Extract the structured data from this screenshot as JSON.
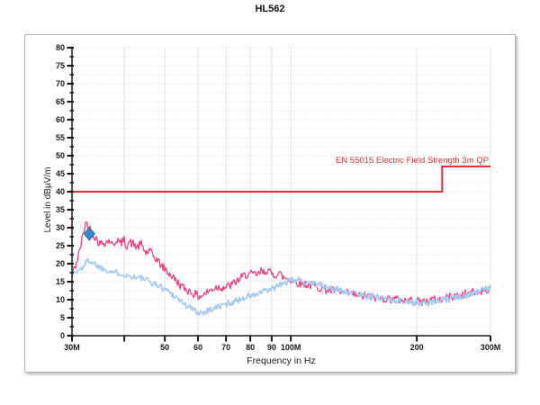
{
  "title": "HL562",
  "chart_data": {
    "type": "line",
    "title": "HL562",
    "xlabel": "Frequency in Hz",
    "ylabel": "Level in dBµV/m",
    "x_scale": "log",
    "x_range_mhz": [
      30,
      300
    ],
    "ylim": [
      0,
      80
    ],
    "y_major_step": 5,
    "y_minor_step": 2.5,
    "grid": "on",
    "x_ticks": [
      {
        "mhz": 30,
        "label": "30M"
      },
      {
        "mhz": 40,
        "label": ""
      },
      {
        "mhz": 50,
        "label": "50"
      },
      {
        "mhz": 60,
        "label": "60"
      },
      {
        "mhz": 70,
        "label": "70"
      },
      {
        "mhz": 80,
        "label": "80"
      },
      {
        "mhz": 90,
        "label": "90"
      },
      {
        "mhz": 100,
        "label": "100M"
      },
      {
        "mhz": 200,
        "label": "200"
      },
      {
        "mhz": 300,
        "label": "300M"
      }
    ],
    "limit_line": {
      "label": "EN 55015 Electric Field Strength 3m QP",
      "color": "#e03030",
      "segments": [
        {
          "from_mhz": 30,
          "to_mhz": 230,
          "level_db": 40
        },
        {
          "from_mhz": 230,
          "to_mhz": 300,
          "level_db": 47
        }
      ]
    },
    "marker": {
      "shape": "diamond",
      "color": "#3c87c9",
      "edge": "#2f6ea6",
      "freq_mhz": 33,
      "level_db": 28.3
    },
    "series": [
      {
        "name": "pink-trace",
        "color": "#ec4381",
        "width": 1.3,
        "noise_db": 1.2,
        "seed": 42,
        "points": [
          [
            30,
            17.5
          ],
          [
            30.4,
            18.5
          ],
          [
            30.8,
            20.5
          ],
          [
            31.2,
            23
          ],
          [
            31.6,
            26
          ],
          [
            32,
            29
          ],
          [
            32.3,
            31.5
          ],
          [
            32.8,
            30.5
          ],
          [
            33.2,
            29.5
          ],
          [
            33.6,
            28.5
          ],
          [
            34,
            27.5
          ],
          [
            34.5,
            26.5
          ],
          [
            35,
            25.5
          ],
          [
            36,
            26
          ],
          [
            37,
            26.5
          ],
          [
            37.5,
            25
          ],
          [
            38,
            26
          ],
          [
            38.5,
            27
          ],
          [
            39,
            25.5
          ],
          [
            40,
            26.5
          ],
          [
            40.5,
            25
          ],
          [
            41,
            26
          ],
          [
            42,
            25.5
          ],
          [
            43,
            24.5
          ],
          [
            44,
            25.5
          ],
          [
            44.5,
            24
          ],
          [
            45,
            23
          ],
          [
            46,
            23.5
          ],
          [
            47,
            22
          ],
          [
            48,
            21
          ],
          [
            49,
            19.5
          ],
          [
            50,
            18.5
          ],
          [
            51,
            17.5
          ],
          [
            52,
            16.5
          ],
          [
            53,
            15.5
          ],
          [
            54,
            14.5
          ],
          [
            55,
            13.5
          ],
          [
            56,
            13
          ],
          [
            57,
            12.5
          ],
          [
            58,
            12
          ],
          [
            59,
            11.5
          ],
          [
            60,
            11
          ],
          [
            61,
            11
          ],
          [
            62,
            11.5
          ],
          [
            63,
            12
          ],
          [
            64,
            12.5
          ],
          [
            65,
            13
          ],
          [
            66,
            13.5
          ],
          [
            68,
            13.5
          ],
          [
            70,
            13.5
          ],
          [
            72,
            14
          ],
          [
            74,
            15
          ],
          [
            75,
            15.5
          ],
          [
            76,
            16
          ],
          [
            78,
            17
          ],
          [
            80,
            17
          ],
          [
            82,
            17
          ],
          [
            84,
            17
          ],
          [
            85,
            18
          ],
          [
            86,
            17.5
          ],
          [
            88,
            18.5
          ],
          [
            89,
            17.5
          ],
          [
            90,
            17
          ],
          [
            92,
            17
          ],
          [
            94,
            17.5
          ],
          [
            95,
            16.5
          ],
          [
            97,
            16
          ],
          [
            100,
            15.5
          ],
          [
            103,
            15
          ],
          [
            105,
            14.5
          ],
          [
            108,
            14.5
          ],
          [
            110,
            14
          ],
          [
            113,
            14
          ],
          [
            116,
            13.5
          ],
          [
            120,
            13
          ],
          [
            124,
            12.5
          ],
          [
            128,
            12.5
          ],
          [
            132,
            12
          ],
          [
            136,
            11.8
          ],
          [
            140,
            11.5
          ],
          [
            145,
            11.2
          ],
          [
            150,
            11
          ],
          [
            155,
            10.8
          ],
          [
            160,
            10.5
          ],
          [
            165,
            10.5
          ],
          [
            170,
            10.2
          ],
          [
            175,
            10.2
          ],
          [
            180,
            10
          ],
          [
            185,
            10
          ],
          [
            190,
            9.8
          ],
          [
            195,
            9.8
          ],
          [
            200,
            9.5
          ],
          [
            205,
            9.5
          ],
          [
            210,
            9.5
          ],
          [
            215,
            9.8
          ],
          [
            220,
            10
          ],
          [
            225,
            10
          ],
          [
            230,
            10.2
          ],
          [
            235,
            10.5
          ],
          [
            240,
            10.8
          ],
          [
            245,
            11
          ],
          [
            250,
            11
          ],
          [
            255,
            11.2
          ],
          [
            260,
            11.5
          ],
          [
            265,
            11.8
          ],
          [
            270,
            12
          ],
          [
            275,
            12
          ],
          [
            280,
            12.2
          ],
          [
            285,
            12.5
          ],
          [
            290,
            12.8
          ],
          [
            295,
            13
          ],
          [
            300,
            13
          ]
        ]
      },
      {
        "name": "blue-trace",
        "color": "#a6cbf2",
        "width": 1.7,
        "noise_db": 0.9,
        "seed": 1337,
        "points": [
          [
            30,
            17
          ],
          [
            30.5,
            17.5
          ],
          [
            31,
            18
          ],
          [
            31.5,
            18.5
          ],
          [
            32,
            19.5
          ],
          [
            32.5,
            20.5
          ],
          [
            33,
            21
          ],
          [
            33.5,
            20.5
          ],
          [
            34,
            20
          ],
          [
            35,
            19
          ],
          [
            36,
            18.5
          ],
          [
            37,
            18
          ],
          [
            38,
            17.5
          ],
          [
            39,
            17.5
          ],
          [
            40,
            17
          ],
          [
            41,
            16.5
          ],
          [
            42,
            16.5
          ],
          [
            43,
            16
          ],
          [
            44,
            16
          ],
          [
            45,
            15.5
          ],
          [
            46,
            15
          ],
          [
            47,
            14.5
          ],
          [
            48,
            14
          ],
          [
            49,
            13.5
          ],
          [
            50,
            13
          ],
          [
            51,
            12.5
          ],
          [
            52,
            11.5
          ],
          [
            53,
            11
          ],
          [
            54,
            10
          ],
          [
            55,
            9.5
          ],
          [
            56,
            8.5
          ],
          [
            57,
            8
          ],
          [
            58,
            7.5
          ],
          [
            59,
            7
          ],
          [
            60,
            6.5
          ],
          [
            62,
            6.5
          ],
          [
            63,
            7
          ],
          [
            65,
            7.5
          ],
          [
            67,
            8
          ],
          [
            69,
            8.5
          ],
          [
            71,
            9
          ],
          [
            73,
            9.5
          ],
          [
            75,
            10
          ],
          [
            77,
            10.5
          ],
          [
            79,
            11
          ],
          [
            81,
            11
          ],
          [
            83,
            11.5
          ],
          [
            85,
            12
          ],
          [
            87,
            12.5
          ],
          [
            89,
            12.5
          ],
          [
            90,
            13
          ],
          [
            92,
            13.5
          ],
          [
            94,
            14
          ],
          [
            96,
            14.5
          ],
          [
            98,
            15
          ],
          [
            100,
            15.2
          ],
          [
            102,
            15.5
          ],
          [
            104,
            15.5
          ],
          [
            106,
            15.2
          ],
          [
            108,
            15
          ],
          [
            110,
            15
          ],
          [
            112,
            14.8
          ],
          [
            115,
            14.5
          ],
          [
            118,
            14
          ],
          [
            121,
            13.5
          ],
          [
            124,
            13.2
          ],
          [
            127,
            13
          ],
          [
            130,
            12.8
          ],
          [
            134,
            12.5
          ],
          [
            138,
            12
          ],
          [
            142,
            11.8
          ],
          [
            146,
            11.5
          ],
          [
            150,
            11.2
          ],
          [
            155,
            11
          ],
          [
            160,
            10.8
          ],
          [
            165,
            10.5
          ],
          [
            170,
            10.2
          ],
          [
            175,
            10
          ],
          [
            180,
            9.8
          ],
          [
            185,
            9.5
          ],
          [
            190,
            9.5
          ],
          [
            195,
            9.2
          ],
          [
            200,
            9.2
          ],
          [
            205,
            9
          ],
          [
            210,
            9
          ],
          [
            215,
            9.2
          ],
          [
            220,
            9.5
          ],
          [
            225,
            9.5
          ],
          [
            230,
            9.8
          ],
          [
            235,
            10
          ],
          [
            240,
            10.2
          ],
          [
            245,
            10.5
          ],
          [
            250,
            10.8
          ],
          [
            255,
            11
          ],
          [
            260,
            11.2
          ],
          [
            265,
            11.5
          ],
          [
            270,
            11.8
          ],
          [
            275,
            12
          ],
          [
            280,
            12.2
          ],
          [
            285,
            12.5
          ],
          [
            290,
            12.8
          ],
          [
            295,
            13
          ],
          [
            300,
            13.2
          ]
        ]
      }
    ]
  },
  "colors": {
    "axis": "#1a1a1a",
    "grid_vertical": "#e2e2e2",
    "grid_horizontal": "#d8d8d8",
    "frame_border": "#b3b3b3",
    "background": "#ffffff"
  }
}
